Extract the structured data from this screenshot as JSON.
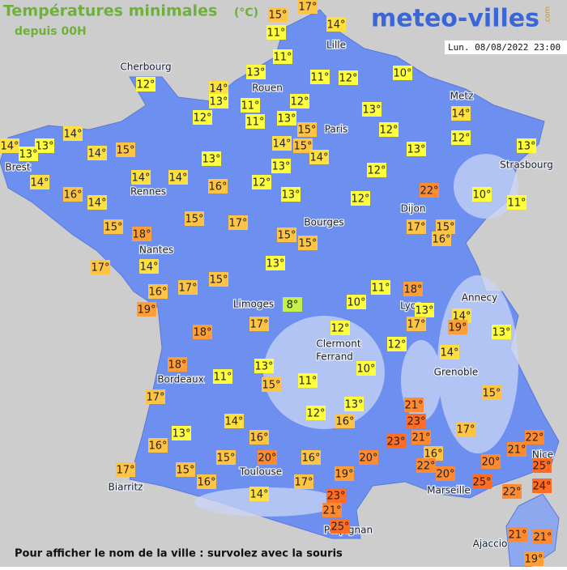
{
  "header": {
    "title": "Températures minimales",
    "unit": "(°C)",
    "subtitle": "depuis 00H",
    "logo": "meteo-villes",
    "logo_suffix": ".com",
    "timestamp": "Lun. 08/08/2022 23:00"
  },
  "cities": [
    "Cherbourg",
    "Lille",
    "Rouen",
    "Paris",
    "Metz",
    "Brest",
    "Rennes",
    "Strasbourg",
    "Dijon",
    "Bourges",
    "Nantes",
    "Annecy",
    "Limoges",
    "Lyon",
    "Clermont",
    "Ferrand",
    "Grenoble",
    "Bordeaux",
    "Toulouse",
    "Nice",
    "Marseille",
    "Biarritz",
    "Perpignan",
    "Ajaccio"
  ],
  "labels": [
    "15°",
    "17°",
    "11°",
    "14°",
    "11°",
    "13°",
    "11°",
    "12°",
    "10°",
    "12°",
    "14°",
    "13°",
    "11°",
    "12°",
    "13°",
    "14°",
    "12°",
    "11°",
    "13°",
    "15°",
    "12°",
    "12°",
    "14°",
    "14°",
    "13°",
    "13°",
    "14°",
    "15°",
    "14°",
    "15°",
    "13°",
    "13°",
    "13°",
    "14°",
    "13°",
    "12°",
    "14°",
    "14°",
    "14°",
    "16°",
    "12°",
    "22°",
    "16°",
    "14°",
    "13°",
    "12°",
    "10°",
    "11°",
    "15°",
    "15°",
    "17°",
    "18°",
    "17°",
    "15°",
    "15°",
    "15°",
    "16°",
    "17°",
    "13°",
    "14°",
    "15°",
    "17°",
    "11°",
    "18°",
    "16°",
    "19°",
    "8°",
    "10°",
    "13°",
    "14°",
    "17°",
    "17°",
    "19°",
    "13°",
    "18°",
    "12°",
    "12°",
    "14°",
    "18°",
    "13°",
    "10°",
    "11°",
    "11°",
    "15°",
    "17°",
    "15°",
    "21°",
    "13°",
    "12°",
    "16°",
    "23°",
    "14°",
    "17°",
    "13°",
    "16°",
    "21°",
    "23°",
    "22°",
    "16°",
    "21°",
    "20°",
    "16°",
    "20°",
    "16°",
    "15°",
    "22°",
    "20°",
    "25°",
    "17°",
    "15°",
    "20°",
    "19°",
    "16°",
    "17°",
    "25°",
    "24°",
    "22°",
    "14°",
    "23°",
    "21°",
    "25°",
    "21°",
    "21°",
    "19°"
  ],
  "footer": "Pour afficher le nom de la ville : survolez avec la souris"
}
